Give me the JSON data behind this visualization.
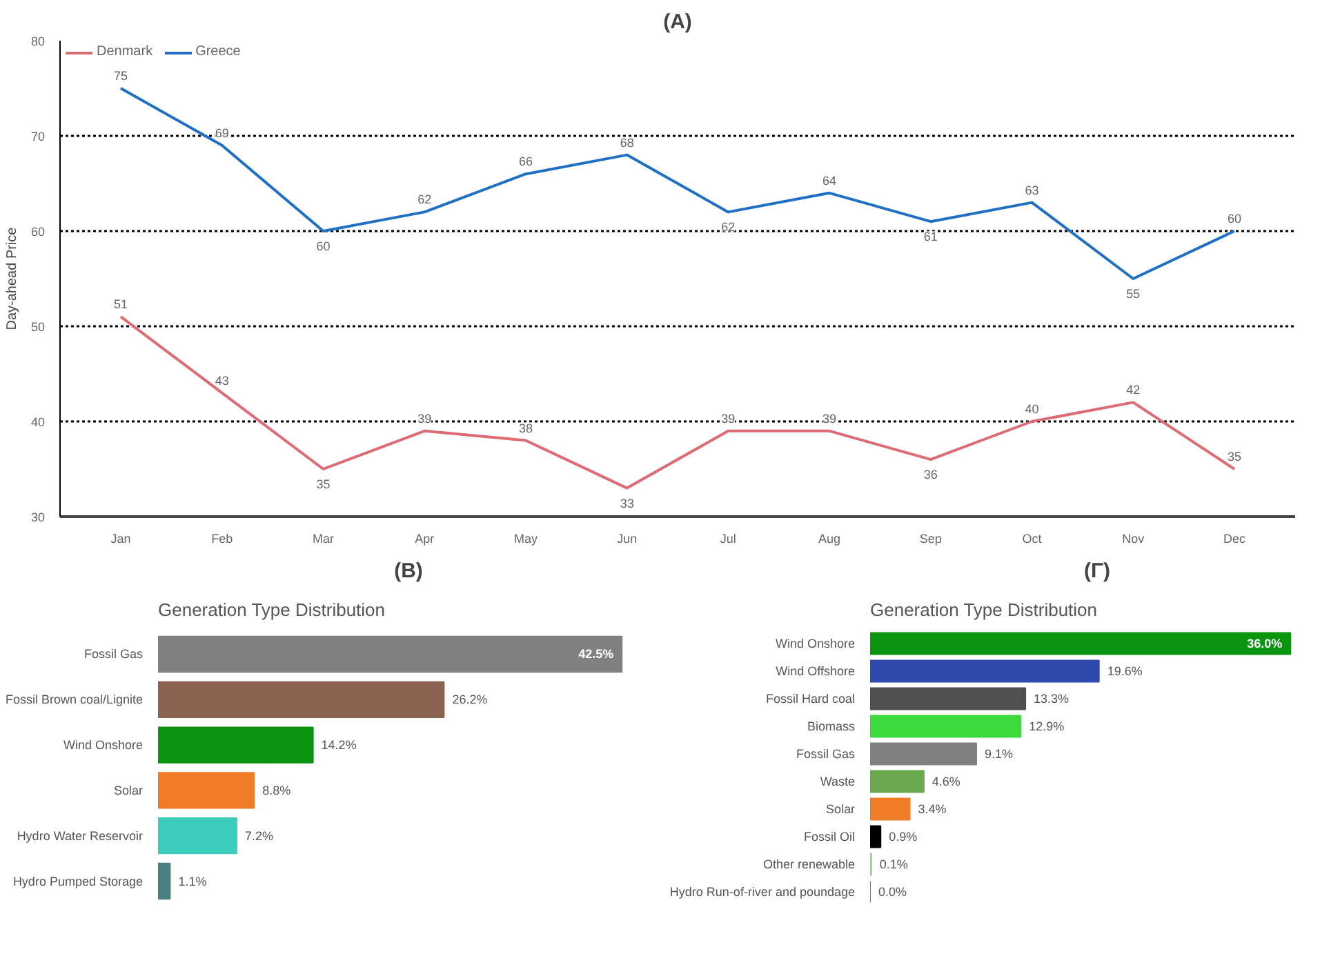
{
  "chart_data": [
    {
      "type": "line",
      "title": "(A)",
      "ylabel": "Day-ahead Price",
      "categories": [
        "Jan",
        "Feb",
        "Mar",
        "Apr",
        "May",
        "Jun",
        "Jul",
        "Aug",
        "Sep",
        "Oct",
        "Nov",
        "Dec"
      ],
      "series": [
        {
          "name": "Denmark",
          "color": "#dd6b73",
          "values": [
            51,
            43,
            35,
            39,
            38,
            33,
            39,
            39,
            36,
            40,
            42,
            35
          ]
        },
        {
          "name": "Greece",
          "color": "#1f6fc5",
          "values": [
            75,
            69,
            60,
            62,
            66,
            68,
            62,
            64,
            61,
            63,
            55,
            60
          ]
        }
      ],
      "ylim": [
        30,
        80
      ],
      "yticks": [
        30,
        40,
        50,
        60,
        70,
        80
      ],
      "grid": "y",
      "legend": "top left",
      "data_labels": true,
      "marker": "none",
      "line_style": "solid"
    },
    {
      "type": "bar",
      "orientation": "horizontal",
      "title": "(B)",
      "subtitle": "Generation Type Distribution",
      "categories": [
        "Fossil Gas",
        "Fossil Brown coal/Lignite",
        "Wind Onshore",
        "Solar",
        "Hydro Water Reservoir",
        "Hydro Pumped Storage"
      ],
      "values": [
        42.5,
        26.2,
        14.2,
        8.8,
        7.2,
        1.1
      ],
      "colors": [
        "#808080",
        "#8b6350",
        "#0a9410",
        "#f07c28",
        "#3cccbc",
        "#4b8080"
      ],
      "value_labels": [
        "42.5%",
        "26.2%",
        "14.2%",
        "8.8%",
        "7.2%",
        "1.1%"
      ]
    },
    {
      "type": "bar",
      "orientation": "horizontal",
      "title": "(Γ)",
      "subtitle": "Generation Type Distribution",
      "categories": [
        "Wind Onshore",
        "Wind Offshore",
        "Fossil Hard coal",
        "Biomass",
        "Fossil Gas",
        "Waste",
        "Solar",
        "Fossil Oil",
        "Other renewable",
        "Hydro Run-of-river and poundage"
      ],
      "values": [
        36.0,
        19.6,
        13.3,
        12.9,
        9.1,
        4.6,
        3.4,
        0.9,
        0.1,
        0.0
      ],
      "colors": [
        "#0a9410",
        "#2f4aac",
        "#505050",
        "#3cda3c",
        "#808080",
        "#6aa84f",
        "#f07c28",
        "#000000",
        "#90d090",
        "#4a7fd0"
      ],
      "value_labels": [
        "36.0%",
        "19.6%",
        "13.3%",
        "12.9%",
        "9.1%",
        "4.6%",
        "3.4%",
        "0.9%",
        "0.1%",
        "0.0%"
      ]
    }
  ]
}
